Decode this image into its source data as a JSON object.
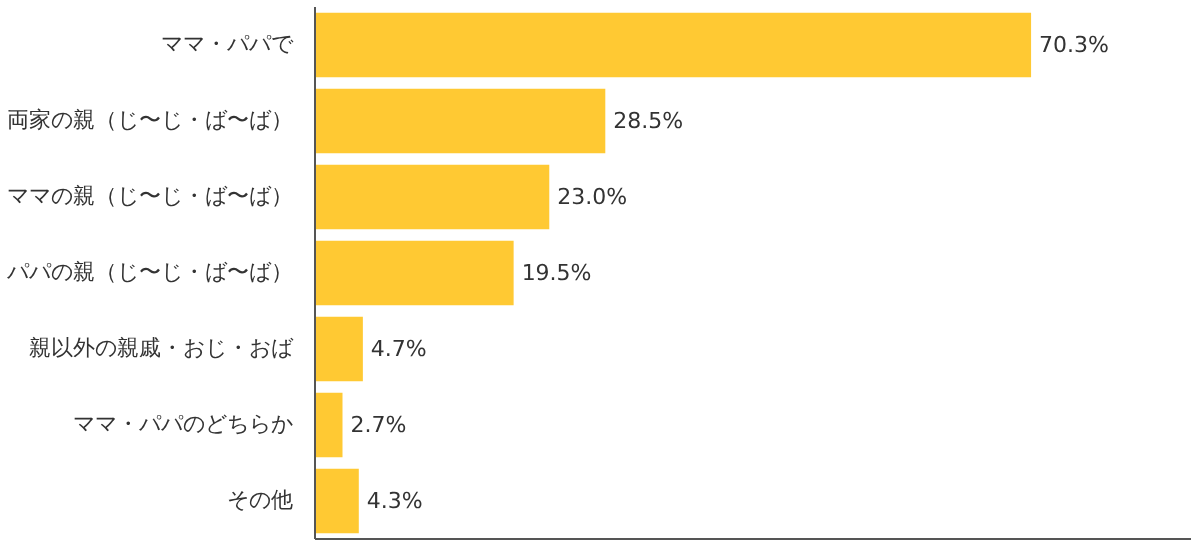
{
  "chart_data": {
    "type": "bar",
    "orientation": "horizontal",
    "categories": [
      "ママ・パパで",
      "両家の親（じ〜じ・ば〜ば）",
      "ママの親（じ〜じ・ば〜ば）",
      "パパの親（じ〜じ・ば〜ば）",
      "親以外の親戚・おじ・おば",
      "ママ・パパのどちらか",
      "その他"
    ],
    "values": [
      70.3,
      28.5,
      23.0,
      19.5,
      4.7,
      2.7,
      4.3
    ],
    "value_labels": [
      "70.3%",
      "28.5%",
      "23.0%",
      "19.5%",
      "4.7%",
      "2.7%",
      "4.3%"
    ],
    "color": "#ffc933",
    "xlim": [
      0,
      86
    ],
    "tick_labels": "y",
    "grid": false
  }
}
